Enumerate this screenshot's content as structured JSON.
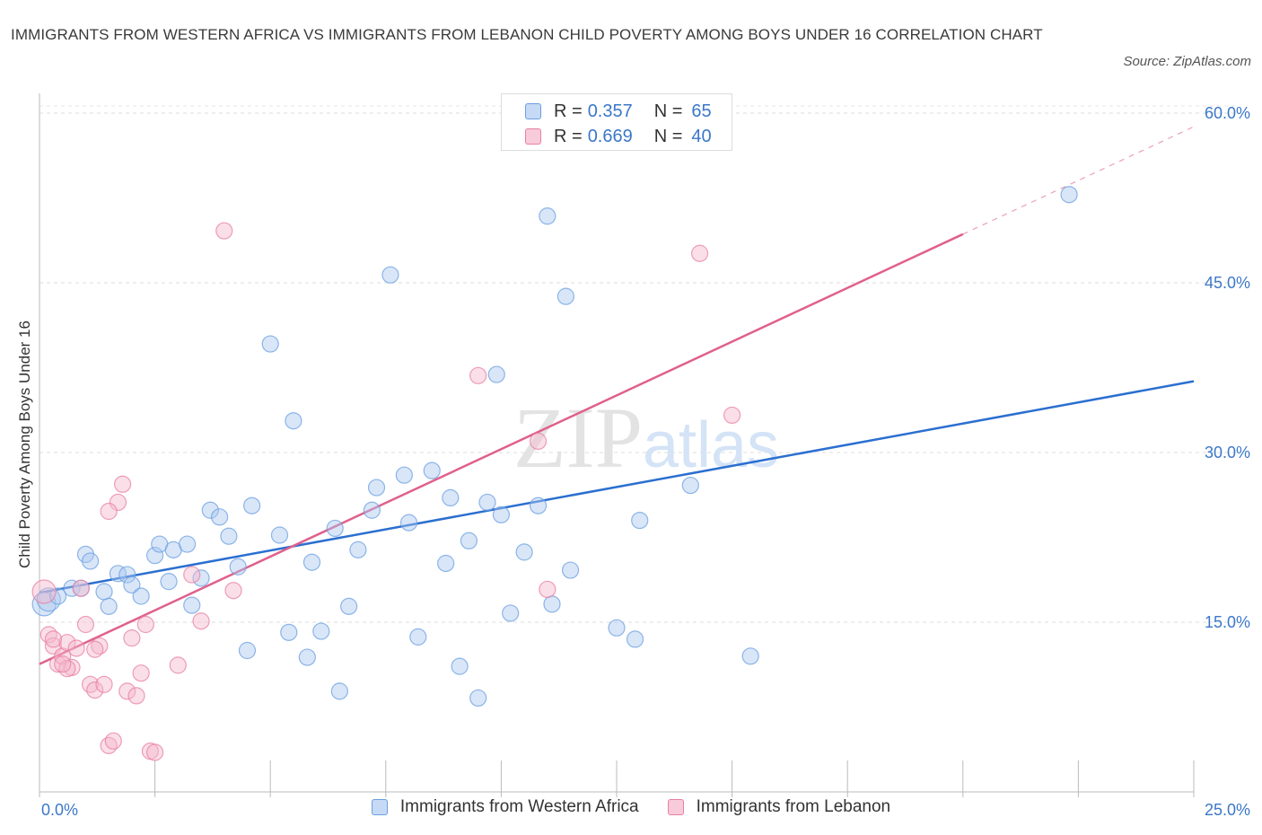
{
  "chart_data": {
    "type": "scatter",
    "title": "IMMIGRANTS FROM WESTERN AFRICA VS IMMIGRANTS FROM LEBANON CHILD POVERTY AMONG BOYS UNDER 16 CORRELATION CHART",
    "source": "Source: ZipAtlas.com",
    "xlabel": "",
    "ylabel": "Child Poverty Among Boys Under 16",
    "xlim": [
      0,
      25
    ],
    "ylim": [
      0,
      60
    ],
    "x_tick_labels": [
      "0.0%",
      "25.0%"
    ],
    "y_tick_labels": [
      "15.0%",
      "30.0%",
      "45.0%",
      "60.0%"
    ],
    "y_ticks": [
      15,
      30,
      45,
      60
    ],
    "watermark": "ZIPatlas",
    "colors": {
      "western_africa_fill": "#aac8f0",
      "western_africa_stroke": "#6a9fe0",
      "western_africa_line": "#2b6fd0",
      "lebanon_fill": "#f5b8cc",
      "lebanon_stroke": "#e87fa2",
      "lebanon_line": "#e0608c",
      "axis_label": "#3b78c8"
    },
    "legend": {
      "r_label": "R =",
      "n_label": "N =",
      "rows": [
        {
          "r": "0.357",
          "n": "65"
        },
        {
          "r": "0.669",
          "n": "40"
        }
      ]
    },
    "series": [
      {
        "name": "Immigrants from Western Africa",
        "trend": {
          "x": [
            0,
            25
          ],
          "y": [
            17.6,
            36.3
          ]
        },
        "points": [
          [
            0.1,
            16.6
          ],
          [
            0.2,
            17.0
          ],
          [
            0.4,
            17.3
          ],
          [
            0.7,
            18.0
          ],
          [
            0.9,
            18.0
          ],
          [
            1.0,
            21.0
          ],
          [
            1.1,
            20.4
          ],
          [
            1.4,
            17.7
          ],
          [
            1.5,
            16.4
          ],
          [
            1.7,
            19.3
          ],
          [
            1.9,
            19.2
          ],
          [
            2.0,
            18.3
          ],
          [
            2.2,
            17.3
          ],
          [
            2.5,
            20.9
          ],
          [
            2.6,
            21.9
          ],
          [
            2.8,
            18.6
          ],
          [
            2.9,
            21.4
          ],
          [
            3.2,
            21.9
          ],
          [
            3.3,
            16.5
          ],
          [
            3.5,
            18.9
          ],
          [
            3.7,
            24.9
          ],
          [
            3.9,
            24.3
          ],
          [
            4.1,
            22.6
          ],
          [
            4.3,
            19.9
          ],
          [
            4.5,
            12.5
          ],
          [
            4.6,
            25.3
          ],
          [
            5.0,
            39.6
          ],
          [
            5.2,
            22.7
          ],
          [
            5.4,
            14.1
          ],
          [
            5.5,
            32.8
          ],
          [
            5.8,
            11.9
          ],
          [
            5.9,
            20.3
          ],
          [
            6.1,
            14.2
          ],
          [
            6.4,
            23.3
          ],
          [
            6.5,
            8.9
          ],
          [
            6.7,
            16.4
          ],
          [
            6.9,
            21.4
          ],
          [
            7.2,
            24.9
          ],
          [
            7.3,
            26.9
          ],
          [
            7.6,
            45.7
          ],
          [
            7.9,
            28.0
          ],
          [
            8.0,
            23.8
          ],
          [
            8.2,
            13.7
          ],
          [
            8.5,
            28.4
          ],
          [
            8.8,
            20.2
          ],
          [
            8.9,
            26.0
          ],
          [
            9.1,
            11.1
          ],
          [
            9.3,
            22.2
          ],
          [
            9.5,
            8.3
          ],
          [
            9.7,
            25.6
          ],
          [
            9.9,
            36.9
          ],
          [
            10.0,
            24.5
          ],
          [
            10.2,
            15.8
          ],
          [
            10.5,
            21.2
          ],
          [
            10.8,
            25.3
          ],
          [
            11.0,
            50.9
          ],
          [
            11.1,
            16.6
          ],
          [
            11.4,
            43.8
          ],
          [
            11.5,
            19.6
          ],
          [
            12.5,
            14.5
          ],
          [
            12.9,
            13.5
          ],
          [
            13.0,
            24.0
          ],
          [
            14.1,
            27.1
          ],
          [
            15.4,
            12.0
          ],
          [
            22.3,
            52.8
          ]
        ]
      },
      {
        "name": "Immigrants from Lebanon",
        "trend": {
          "x": [
            0,
            20
          ],
          "y": [
            11.3,
            49.3
          ]
        },
        "trend_dashed": {
          "x": [
            20,
            25
          ],
          "y": [
            49.3,
            58.8
          ]
        },
        "points": [
          [
            0.1,
            17.7
          ],
          [
            0.2,
            13.9
          ],
          [
            0.3,
            12.9
          ],
          [
            0.4,
            11.3
          ],
          [
            0.5,
            12.0
          ],
          [
            0.6,
            13.2
          ],
          [
            0.7,
            11.0
          ],
          [
            0.8,
            12.7
          ],
          [
            0.9,
            18.0
          ],
          [
            1.0,
            14.8
          ],
          [
            1.1,
            9.5
          ],
          [
            1.2,
            9.0
          ],
          [
            1.3,
            12.9
          ],
          [
            1.4,
            9.5
          ],
          [
            1.5,
            4.1
          ],
          [
            1.6,
            4.5
          ],
          [
            1.7,
            25.6
          ],
          [
            1.8,
            27.2
          ],
          [
            1.9,
            8.9
          ],
          [
            2.0,
            13.6
          ],
          [
            2.1,
            8.5
          ],
          [
            2.2,
            10.5
          ],
          [
            2.3,
            14.8
          ],
          [
            2.4,
            3.6
          ],
          [
            2.5,
            3.5
          ],
          [
            3.0,
            11.2
          ],
          [
            3.3,
            19.2
          ],
          [
            3.5,
            15.1
          ],
          [
            4.0,
            49.6
          ],
          [
            4.2,
            17.8
          ],
          [
            0.3,
            13.5
          ],
          [
            0.6,
            10.9
          ],
          [
            1.2,
            12.6
          ],
          [
            1.5,
            24.8
          ],
          [
            9.5,
            36.8
          ],
          [
            10.8,
            31.0
          ],
          [
            11.0,
            17.9
          ],
          [
            14.3,
            47.6
          ],
          [
            15.0,
            33.3
          ],
          [
            0.5,
            11.3
          ]
        ]
      }
    ]
  }
}
